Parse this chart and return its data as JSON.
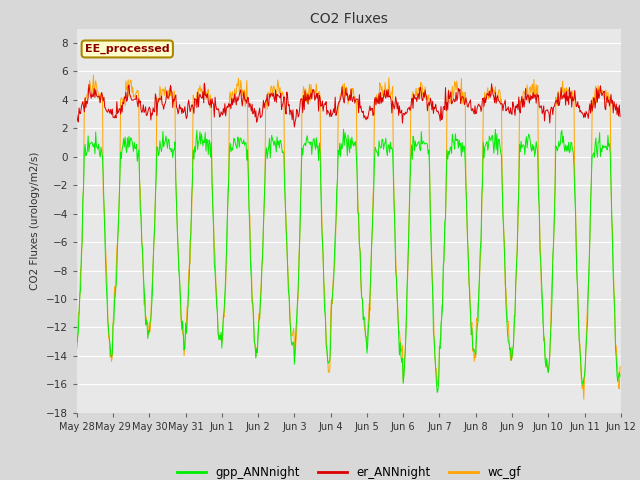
{
  "title": "CO2 Fluxes",
  "ylabel": "CO2 Fluxes (urology/m2/s)",
  "ylim": [
    -18,
    9
  ],
  "yticks": [
    -18,
    -16,
    -14,
    -12,
    -10,
    -8,
    -6,
    -4,
    -2,
    0,
    2,
    4,
    6,
    8
  ],
  "bg_color": "#d8d8d8",
  "plot_bg": "#e8e8e8",
  "legend_items": [
    "gpp_ANNnight",
    "er_ANNnight",
    "wc_gf"
  ],
  "legend_colors": [
    "#00ee00",
    "#dd0000",
    "#ffa500"
  ],
  "annotation_text": "EE_processed",
  "annotation_bg": "#ffffcc",
  "annotation_border": "#aa8800",
  "n_days": 15,
  "points_per_day": 48,
  "date_labels": [
    "May 28",
    "May 29",
    "May 30",
    "May 31",
    "Jun 1",
    "Jun 2",
    "Jun 3",
    "Jun 4",
    "Jun 5",
    "Jun 6",
    "Jun 7",
    "Jun 8",
    "Jun 9",
    "Jun 10",
    "Jun 11",
    "Jun 12"
  ],
  "day_amplitudes_gpp": [
    14,
    12,
    13,
    13,
    14,
    13,
    15,
    12,
    14,
    16.5,
    14,
    14,
    15,
    16,
    16
  ],
  "day_amplitudes_wc": [
    14,
    12,
    13,
    13,
    14,
    13,
    15,
    12,
    14,
    16.5,
    14,
    14,
    15,
    16,
    16
  ]
}
